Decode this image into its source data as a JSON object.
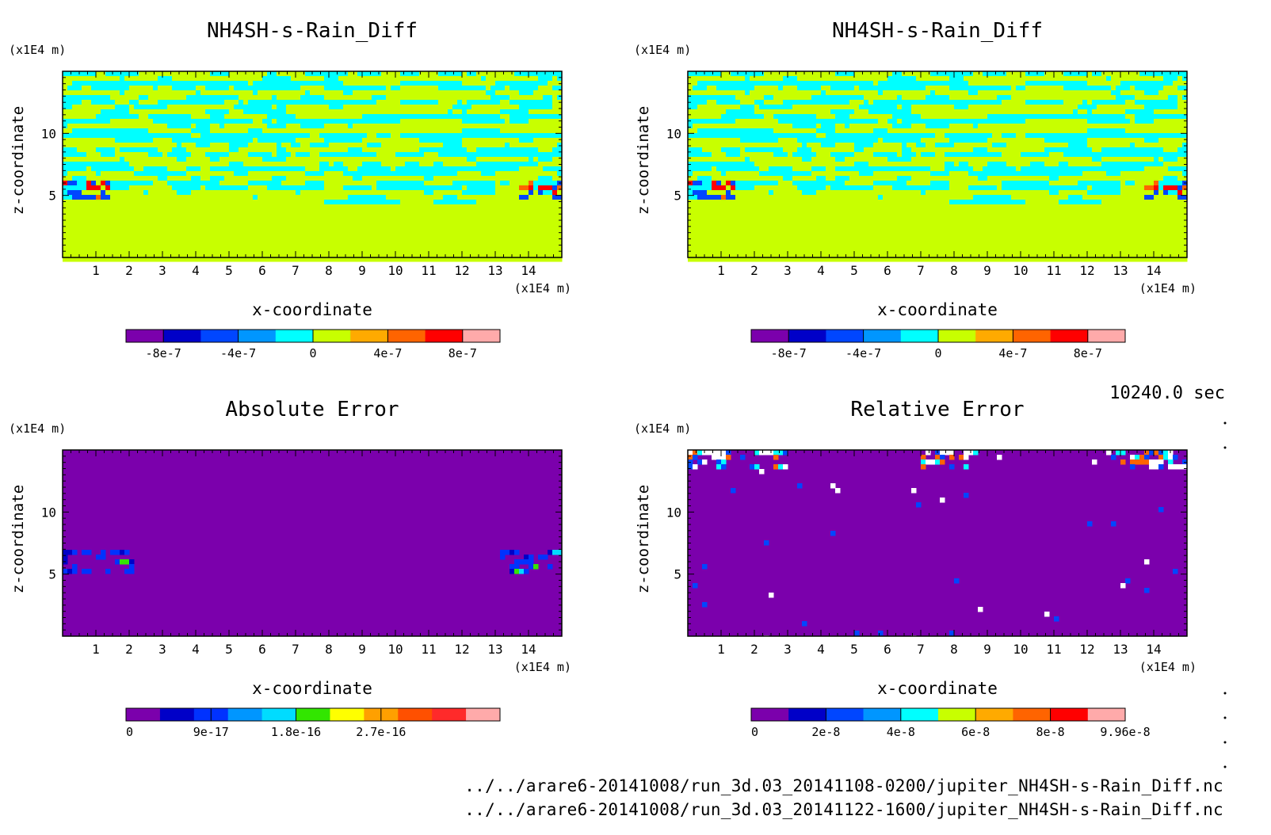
{
  "time_label": "10240.0 sec",
  "footer": {
    "file_1": "../../arare6-20141008/run_3d.03_20141108-0200/jupiter_NH4SH-s-Rain_Diff.nc",
    "file_2": "../../arare6-20141008/run_3d.03_20141122-1600/jupiter_NH4SH-s-Rain_Diff.nc"
  },
  "chart_data": [
    {
      "type": "heatmap",
      "title": "NH4SH-s-Rain_Diff",
      "xlabel": "x-coordinate",
      "ylabel": "z-coordinate",
      "x_unit": "(x1E4 m)",
      "y_unit": "(x1E4 m)",
      "xlim": [
        0,
        15
      ],
      "ylim": [
        0,
        15
      ],
      "x_ticks": [
        "1",
        "2",
        "3",
        "4",
        "5",
        "6",
        "7",
        "8",
        "9",
        "10",
        "11",
        "12",
        "13",
        "14"
      ],
      "y_ticks": [
        "5",
        "10"
      ],
      "pattern": "layered-noise",
      "colorbar": {
        "colors": [
          "#7b00ac",
          "#0000c8",
          "#0046ff",
          "#0096ff",
          "#00ffff",
          "#c8ff00",
          "#ffaa00",
          "#ff6400",
          "#ff0000",
          "#ffaaaa"
        ],
        "labels": [
          "-8e-7",
          "-4e-7",
          "0",
          "4e-7",
          "8e-7"
        ]
      }
    },
    {
      "type": "heatmap",
      "title": "NH4SH-s-Rain_Diff",
      "xlabel": "x-coordinate",
      "ylabel": "z-coordinate",
      "x_unit": "(x1E4 m)",
      "y_unit": "(x1E4 m)",
      "xlim": [
        0,
        15
      ],
      "ylim": [
        0,
        15
      ],
      "x_ticks": [
        "1",
        "2",
        "3",
        "4",
        "5",
        "6",
        "7",
        "8",
        "9",
        "10",
        "11",
        "12",
        "13",
        "14"
      ],
      "y_ticks": [
        "5",
        "10"
      ],
      "pattern": "layered-noise",
      "colorbar": {
        "colors": [
          "#7b00ac",
          "#0000c8",
          "#0046ff",
          "#0096ff",
          "#00ffff",
          "#c8ff00",
          "#ffaa00",
          "#ff6400",
          "#ff0000",
          "#ffaaaa"
        ],
        "labels": [
          "-8e-7",
          "-4e-7",
          "0",
          "4e-7",
          "8e-7"
        ]
      }
    },
    {
      "type": "heatmap",
      "title": "Absolute Error",
      "xlabel": "x-coordinate",
      "ylabel": "z-coordinate",
      "x_unit": "(x1E4 m)",
      "y_unit": "(x1E4 m)",
      "xlim": [
        0,
        15
      ],
      "ylim": [
        0,
        15
      ],
      "x_ticks": [
        "1",
        "2",
        "3",
        "4",
        "5",
        "6",
        "7",
        "8",
        "9",
        "10",
        "11",
        "12",
        "13",
        "14"
      ],
      "y_ticks": [
        "5",
        "10"
      ],
      "pattern": "abs-error",
      "colorbar": {
        "colors": [
          "#7b00ac",
          "#0000c8",
          "#0032ff",
          "#0096ff",
          "#00dcff",
          "#32e600",
          "#ffff00",
          "#ffa000",
          "#ff5000",
          "#ff2a2a",
          "#ffaaaa"
        ],
        "labels": [
          "0",
          "9e-17",
          "1.8e-16",
          "2.7e-16"
        ]
      }
    },
    {
      "type": "heatmap",
      "title": "Relative Error",
      "xlabel": "x-coordinate",
      "ylabel": "z-coordinate",
      "x_unit": "(x1E4 m)",
      "y_unit": "(x1E4 m)",
      "xlim": [
        0,
        15
      ],
      "ylim": [
        0,
        15
      ],
      "x_ticks": [
        "1",
        "2",
        "3",
        "4",
        "5",
        "6",
        "7",
        "8",
        "9",
        "10",
        "11",
        "12",
        "13",
        "14"
      ],
      "y_ticks": [
        "5",
        "10"
      ],
      "pattern": "rel-error",
      "colorbar": {
        "colors": [
          "#7b00ac",
          "#0000c8",
          "#0046ff",
          "#0096ff",
          "#00ffff",
          "#c8ff00",
          "#ffaa00",
          "#ff6400",
          "#ff0000",
          "#ffaaaa"
        ],
        "labels": [
          "0",
          "2e-8",
          "4e-8",
          "6e-8",
          "8e-8",
          "9.96e-8"
        ]
      }
    }
  ]
}
